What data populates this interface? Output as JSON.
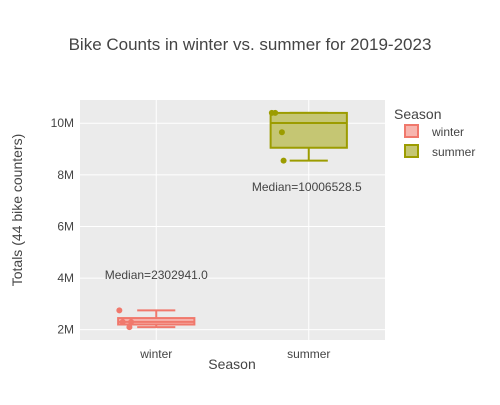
{
  "chart_data": {
    "type": "box",
    "title": "Bike Counts in winter vs. summer for 2019-2023",
    "xlabel": "Season",
    "ylabel": "Totals (44 bike counters)",
    "categories": [
      "winter",
      "summer"
    ],
    "ylim": [
      1600000,
      10900000
    ],
    "yticks": [
      2000000,
      4000000,
      6000000,
      8000000,
      10000000
    ],
    "ytick_labels": [
      "2M",
      "4M",
      "6M",
      "8M",
      "10M"
    ],
    "grid": true,
    "legend": {
      "title": "Season",
      "placement": "right"
    },
    "series": [
      {
        "name": "winter",
        "category": "winter",
        "color": "#f0786c",
        "fill": "#f7b5ae",
        "min": 2100000,
        "q1": 2200000,
        "median": 2302941.0,
        "q3": 2450000,
        "max": 2750000,
        "points": [
          2750000,
          2300000,
          2100000,
          2300000
        ],
        "annotation": "Median=2302941.0"
      },
      {
        "name": "summer",
        "category": "summer",
        "color": "#9c9c00",
        "fill": "#c5c673",
        "min": 8550000,
        "q1": 9050000,
        "median": 10006528.5,
        "q3": 10400000,
        "max": 10400000,
        "points": [
          10400000,
          10400000,
          9650000,
          8550000
        ],
        "annotation": "Median=10006528.5"
      }
    ]
  }
}
